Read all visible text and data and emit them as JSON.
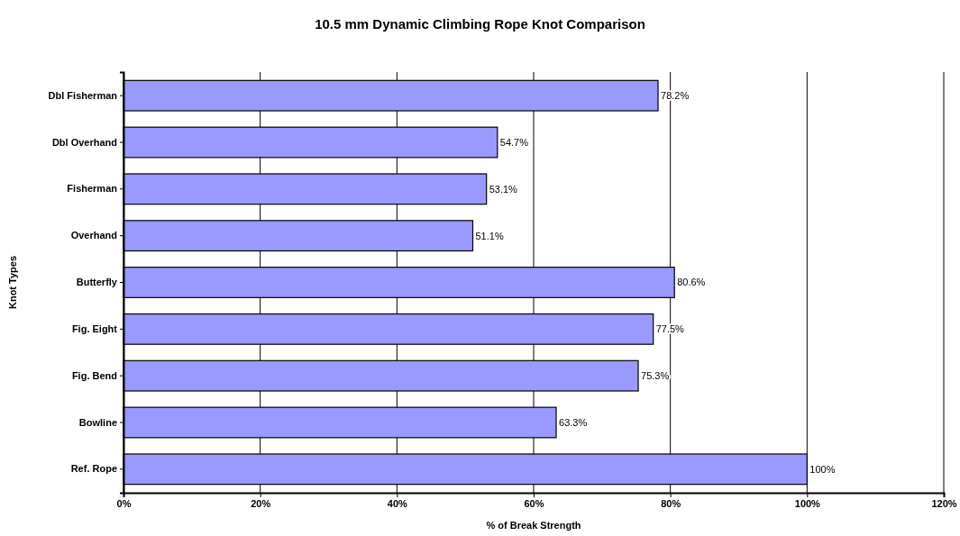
{
  "chart_data": {
    "type": "bar",
    "orientation": "horizontal",
    "title": "10.5 mm Dynamic Climbing Rope Knot Comparison",
    "xlabel": "% of Break Strength",
    "ylabel": "Knot Types",
    "categories": [
      "Dbl Fisherman",
      "Dbl Overhand",
      "Fisherman",
      "Overhand",
      "Butterfly",
      "Fig. Eight",
      "Fig. Bend",
      "Bowline",
      "Ref. Rope"
    ],
    "values": [
      78.2,
      54.7,
      53.1,
      51.1,
      80.6,
      77.5,
      75.3,
      63.3,
      100
    ],
    "value_labels": [
      "78.2%",
      "54.7%",
      "53.1%",
      "51.1%",
      "80.6%",
      "77.5%",
      "75.3%",
      "63.3%",
      "100%"
    ],
    "color": "#9999ff",
    "xlim": [
      0,
      120
    ],
    "xticks": [
      {
        "value": 0,
        "label": "0%"
      },
      {
        "value": 20,
        "label": "20%"
      },
      {
        "value": 40,
        "label": "40%"
      },
      {
        "value": 60,
        "label": "60%"
      },
      {
        "value": 80,
        "label": "80%"
      },
      {
        "value": 100,
        "label": "100%"
      },
      {
        "value": 120,
        "label": "120%"
      }
    ],
    "grid": "x"
  }
}
